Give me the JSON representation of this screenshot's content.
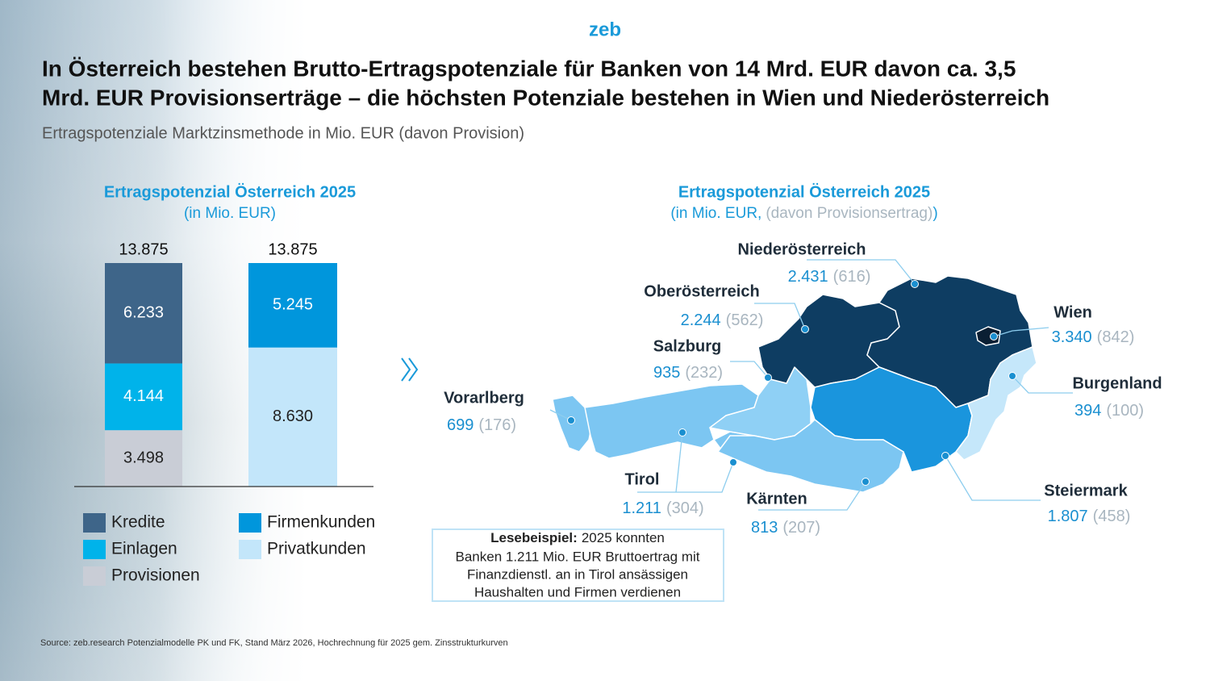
{
  "logo": "zeb",
  "title_lines": [
    "In Österreich bestehen Brutto-Ertragspotenziale für Banken von 14 Mrd. EUR davon ca. 3,5",
    "Mrd. EUR Provisionserträge – die höchsten Potenziale bestehen in Wien und Niederösterreich"
  ],
  "subtitle": "Ertragspotenziale Marktzinsmethode in Mio. EUR (davon Provision)",
  "chart_data": {
    "type": "stacked_bar",
    "title": "Ertragspotenzial Österreich 2025",
    "subtitle": "(in Mio. EUR)",
    "categories": [
      null,
      null
    ],
    "totals": [
      {
        "value": 13875,
        "label": "13.875"
      },
      {
        "value": 13875,
        "label": "13.875"
      }
    ],
    "series": [
      {
        "name": "Provisionen",
        "color": "#c9cdd6",
        "values": [
          3498,
          null
        ],
        "value_labels": [
          "3.498",
          null
        ]
      },
      {
        "name": "Einlagen",
        "color": "#00b3ea",
        "values": [
          4144,
          null
        ],
        "value_labels": [
          "4.144",
          null
        ]
      },
      {
        "name": "Kredite",
        "color": "#3e6589",
        "values": [
          6233,
          null
        ],
        "value_labels": [
          "6.233",
          null
        ]
      },
      {
        "name": "Privatkunden",
        "color": "#c3e6fa",
        "values": [
          null,
          8630
        ],
        "value_labels": [
          null,
          "8.630"
        ]
      },
      {
        "name": "Firmenkunden",
        "color": "#0096dc",
        "values": [
          null,
          5245
        ],
        "value_labels": [
          null,
          "5.245"
        ]
      }
    ]
  },
  "map": {
    "title": "Ertragspotenzial Österreich 2025",
    "subtitle_parts": [
      "(in Mio. EUR,",
      "(davon Provisionsertrag)",
      ")"
    ],
    "regions": [
      {
        "name": "Niederösterreich",
        "value": "2.431",
        "provision": "(616)"
      },
      {
        "name": "Oberösterreich",
        "value": "2.244",
        "provision": "(562)"
      },
      {
        "name": "Salzburg",
        "value": "935",
        "provision": "(232)"
      },
      {
        "name": "Vorarlberg",
        "value": "699",
        "provision": "(176)"
      },
      {
        "name": "Tirol",
        "value": "1.211",
        "provision": "(304)"
      },
      {
        "name": "Kärnten",
        "value": "813",
        "provision": "(207)"
      },
      {
        "name": "Wien",
        "value": "3.340",
        "provision": "(842)"
      },
      {
        "name": "Burgenland",
        "value": "394",
        "provision": "(100)"
      },
      {
        "name": "Steiermark",
        "value": "1.807",
        "provision": "(458)"
      }
    ]
  },
  "reading_example": {
    "label": "Lesebeispiel:",
    "lines": [
      "2025 konnten",
      "Banken 1.211 Mio. EUR Bruttoertrag mit",
      "Finanzdienstl. an in Tirol ansässigen",
      "Haushalten und Firmen verdienen"
    ]
  },
  "source": "Source: zeb.research Potenzialmodelle PK und FK, Stand März 2026, Hochrechnung für 2025 gem. Zinsstrukturkurven"
}
